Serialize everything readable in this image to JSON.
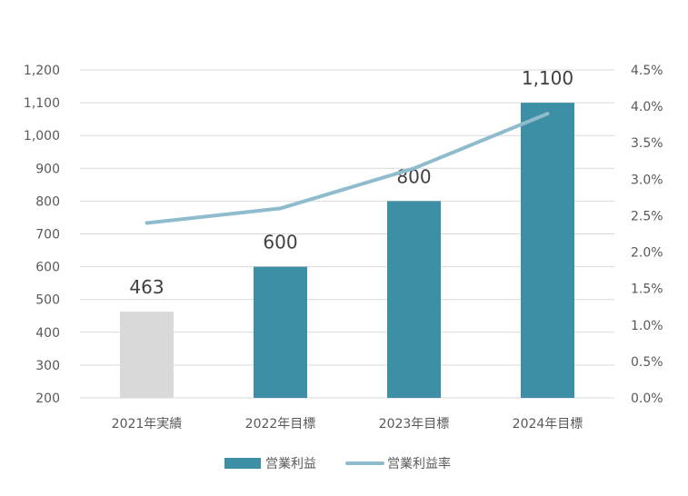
{
  "chart_data": {
    "type": "bar",
    "categories": [
      "2021年実績",
      "2022年目標",
      "2023年目標",
      "2024年目標"
    ],
    "series": [
      {
        "name": "営業利益",
        "type": "bar",
        "axis": "left",
        "values": [
          463,
          600,
          800,
          1100
        ],
        "data_labels": [
          "463",
          "600",
          "800",
          "1,100"
        ],
        "colors": [
          "#d9d9d9",
          "#3d8fa6",
          "#3d8fa6",
          "#3d8fa6"
        ]
      },
      {
        "name": "営業利益率",
        "type": "line",
        "axis": "right",
        "values": [
          2.4,
          2.6,
          3.15,
          3.9
        ],
        "color": "#8fbccc"
      }
    ],
    "left_axis": {
      "ylim": [
        200,
        1200
      ],
      "ticks": [
        200,
        300,
        400,
        500,
        600,
        700,
        800,
        900,
        1000,
        1100,
        1200
      ],
      "tick_labels": [
        "200",
        "300",
        "400",
        "500",
        "600",
        "700",
        "800",
        "900",
        "1,000",
        "1,100",
        "1,200"
      ]
    },
    "right_axis": {
      "ylim": [
        0,
        4.5
      ],
      "ticks": [
        0,
        0.5,
        1,
        1.5,
        2,
        2.5,
        3,
        3.5,
        4,
        4.5
      ],
      "tick_labels": [
        "0.0%",
        "0.5%",
        "1.0%",
        "1.5%",
        "2.0%",
        "2.5%",
        "3.0%",
        "3.5%",
        "4.0%",
        "4.5%"
      ]
    },
    "grid": true,
    "legend": {
      "position": "bottom",
      "entries": [
        "営業利益",
        "営業利益率"
      ]
    },
    "title": "",
    "xlabel": "",
    "ylabel": ""
  }
}
